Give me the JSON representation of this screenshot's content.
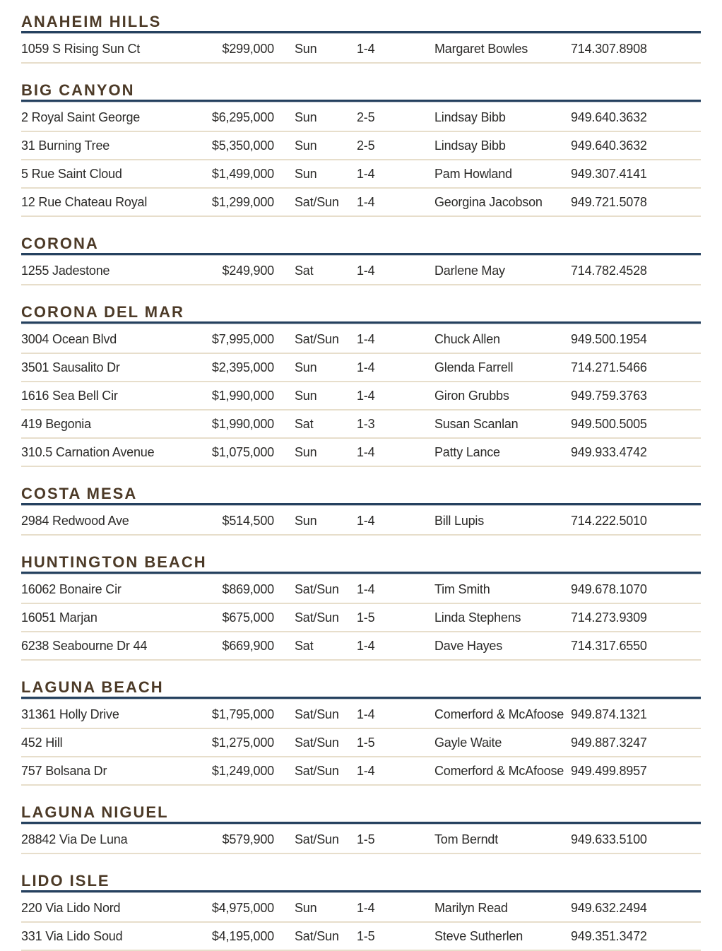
{
  "colors": {
    "header_text": "#4c3a27",
    "header_rule": "#25415f",
    "row_rule": "#e7decb"
  },
  "sections": [
    {
      "name": "ANAHEIM HILLS",
      "listings": [
        {
          "address": "1059 S Rising Sun Ct",
          "price": "$299,000",
          "days": "Sun",
          "time": "1-4",
          "agent": "Margaret Bowles",
          "phone": "714.307.8908"
        }
      ]
    },
    {
      "name": "BIG CANYON",
      "listings": [
        {
          "address": "2 Royal Saint George",
          "price": "$6,295,000",
          "days": "Sun",
          "time": "2-5",
          "agent": "Lindsay Bibb",
          "phone": "949.640.3632"
        },
        {
          "address": "31 Burning Tree",
          "price": "$5,350,000",
          "days": "Sun",
          "time": "2-5",
          "agent": "Lindsay Bibb",
          "phone": "949.640.3632"
        },
        {
          "address": "5 Rue Saint Cloud",
          "price": "$1,499,000",
          "days": "Sun",
          "time": "1-4",
          "agent": "Pam Howland",
          "phone": "949.307.4141"
        },
        {
          "address": "12 Rue Chateau Royal",
          "price": "$1,299,000",
          "days": "Sat/Sun",
          "time": "1-4",
          "agent": "Georgina Jacobson",
          "phone": "949.721.5078"
        }
      ]
    },
    {
      "name": "CORONA",
      "listings": [
        {
          "address": "1255 Jadestone",
          "price": "$249,900",
          "days": "Sat",
          "time": "1-4",
          "agent": "Darlene May",
          "phone": "714.782.4528"
        }
      ]
    },
    {
      "name": "CORONA DEL MAR",
      "listings": [
        {
          "address": "3004 Ocean Blvd",
          "price": "$7,995,000",
          "days": "Sat/Sun",
          "time": "1-4",
          "agent": "Chuck Allen",
          "phone": "949.500.1954"
        },
        {
          "address": "3501 Sausalito Dr",
          "price": "$2,395,000",
          "days": "Sun",
          "time": "1-4",
          "agent": "Glenda Farrell",
          "phone": "714.271.5466"
        },
        {
          "address": "1616 Sea Bell Cir",
          "price": "$1,990,000",
          "days": "Sun",
          "time": "1-4",
          "agent": "Giron Grubbs",
          "phone": "949.759.3763"
        },
        {
          "address": "419 Begonia",
          "price": "$1,990,000",
          "days": "Sat",
          "time": "1-3",
          "agent": "Susan Scanlan",
          "phone": "949.500.5005"
        },
        {
          "address": "310.5 Carnation Avenue",
          "price": "$1,075,000",
          "days": "Sun",
          "time": "1-4",
          "agent": "Patty Lance",
          "phone": "949.933.4742"
        }
      ]
    },
    {
      "name": "COSTA MESA",
      "listings": [
        {
          "address": "2984 Redwood Ave",
          "price": "$514,500",
          "days": "Sun",
          "time": "1-4",
          "agent": "Bill Lupis",
          "phone": "714.222.5010"
        }
      ]
    },
    {
      "name": "HUNTINGTON BEACH",
      "listings": [
        {
          "address": "16062 Bonaire Cir",
          "price": "$869,000",
          "days": "Sat/Sun",
          "time": "1-4",
          "agent": "Tim Smith",
          "phone": "949.678.1070"
        },
        {
          "address": "16051 Marjan",
          "price": "$675,000",
          "days": "Sat/Sun",
          "time": "1-5",
          "agent": "Linda Stephens",
          "phone": "714.273.9309"
        },
        {
          "address": "6238 Seabourne Dr 44",
          "price": "$669,900",
          "days": "Sat",
          "time": "1-4",
          "agent": "Dave Hayes",
          "phone": "714.317.6550"
        }
      ]
    },
    {
      "name": "LAGUNA BEACH",
      "listings": [
        {
          "address": "31361 Holly Drive",
          "price": "$1,795,000",
          "days": "Sat/Sun",
          "time": "1-4",
          "agent": "Comerford & McAfoose",
          "phone": "949.874.1321"
        },
        {
          "address": "452 Hill",
          "price": "$1,275,000",
          "days": "Sat/Sun",
          "time": "1-5",
          "agent": "Gayle Waite",
          "phone": "949.887.3247"
        },
        {
          "address": "757 Bolsana Dr",
          "price": "$1,249,000",
          "days": "Sat/Sun",
          "time": "1-4",
          "agent": "Comerford & McAfoose",
          "phone": "949.499.8957"
        }
      ]
    },
    {
      "name": "LAGUNA NIGUEL",
      "listings": [
        {
          "address": "28842 Via De Luna",
          "price": "$579,900",
          "days": "Sat/Sun",
          "time": "1-5",
          "agent": "Tom Berndt",
          "phone": "949.633.5100"
        }
      ]
    },
    {
      "name": "LIDO ISLE",
      "listings": [
        {
          "address": "220 Via Lido Nord",
          "price": "$4,975,000",
          "days": "Sun",
          "time": "1-4",
          "agent": "Marilyn Read",
          "phone": "949.632.2494"
        },
        {
          "address": "331 Via Lido Soud",
          "price": "$4,195,000",
          "days": "Sat/Sun",
          "time": "1-5",
          "agent": "Steve Sutherlen",
          "phone": "949.351.3472"
        }
      ]
    }
  ]
}
